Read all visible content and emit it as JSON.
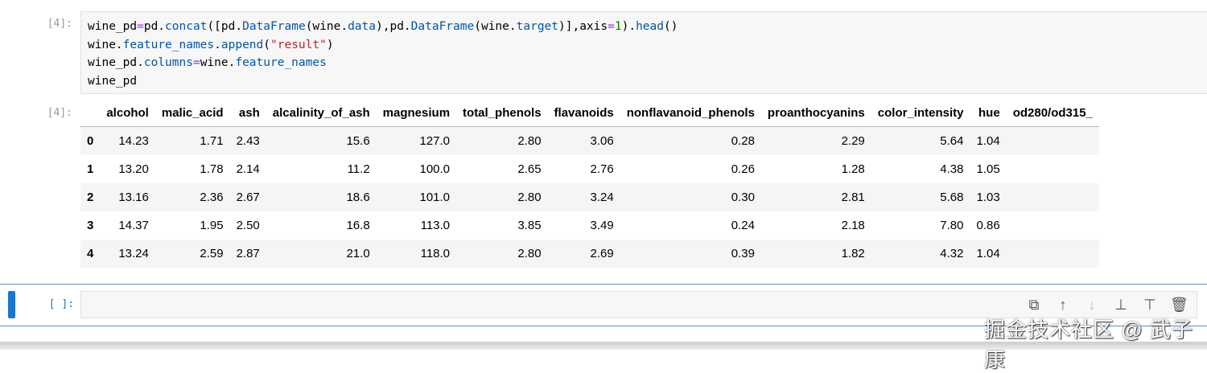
{
  "cell_in": {
    "prompt": "[4]:",
    "code_lines": [
      [
        [
          "wine_pd",
          ""
        ],
        [
          "=",
          "op"
        ],
        [
          "pd.",
          ""
        ],
        [
          "concat",
          "kw"
        ],
        [
          "([",
          ""
        ],
        [
          "pd.",
          ""
        ],
        [
          "DataFrame",
          "kw"
        ],
        [
          "(wine.",
          ""
        ],
        [
          "data",
          "kw"
        ],
        [
          "),pd.",
          ""
        ],
        [
          "DataFrame",
          "kw"
        ],
        [
          "(wine.",
          ""
        ],
        [
          "target",
          "kw"
        ],
        [
          ")],axis",
          ""
        ],
        [
          "=",
          "op"
        ],
        [
          "1",
          "nm"
        ],
        [
          ").",
          ""
        ],
        [
          "head",
          "kw"
        ],
        [
          "()",
          ""
        ]
      ],
      [
        [
          "wine.",
          ""
        ],
        [
          "feature_names",
          "kw"
        ],
        [
          ".",
          ""
        ],
        [
          "append",
          "kw"
        ],
        [
          "(",
          ""
        ],
        [
          "\"result\"",
          "st"
        ],
        [
          ")",
          ""
        ]
      ],
      [
        [
          "wine_pd.",
          ""
        ],
        [
          "columns",
          "kw"
        ],
        [
          "=",
          "op"
        ],
        [
          "wine.",
          ""
        ],
        [
          "feature_names",
          "kw"
        ]
      ],
      [
        [
          "wine_pd",
          ""
        ]
      ]
    ]
  },
  "cell_out": {
    "prompt": "[4]:",
    "columns": [
      "",
      "alcohol",
      "malic_acid",
      "ash",
      "alcalinity_of_ash",
      "magnesium",
      "total_phenols",
      "flavanoids",
      "nonflavanoid_phenols",
      "proanthocyanins",
      "color_intensity",
      "hue",
      "od280/od315_"
    ],
    "rows": [
      [
        "0",
        "14.23",
        "1.71",
        "2.43",
        "15.6",
        "127.0",
        "2.80",
        "3.06",
        "0.28",
        "2.29",
        "5.64",
        "1.04",
        ""
      ],
      [
        "1",
        "13.20",
        "1.78",
        "2.14",
        "11.2",
        "100.0",
        "2.65",
        "2.76",
        "0.26",
        "1.28",
        "4.38",
        "1.05",
        ""
      ],
      [
        "2",
        "13.16",
        "2.36",
        "2.67",
        "18.6",
        "101.0",
        "2.80",
        "3.24",
        "0.30",
        "2.81",
        "5.68",
        "1.03",
        ""
      ],
      [
        "3",
        "14.37",
        "1.95",
        "2.50",
        "16.8",
        "113.0",
        "3.85",
        "3.49",
        "0.24",
        "2.18",
        "7.80",
        "0.86",
        ""
      ],
      [
        "4",
        "13.24",
        "2.59",
        "2.87",
        "21.0",
        "118.0",
        "2.80",
        "2.69",
        "0.39",
        "1.82",
        "4.32",
        "1.04",
        ""
      ]
    ]
  },
  "empty_cell": {
    "prompt": "[ ]:"
  },
  "toolbar": {
    "icons": [
      "duplicate-icon",
      "move-up-icon",
      "move-down-icon",
      "insert-above-icon",
      "insert-below-icon",
      "delete-icon"
    ],
    "glyphs": [
      "⧉",
      "↑",
      "↓",
      "⊥",
      "⊤",
      "🗑"
    ]
  },
  "watermark": "掘金技术社区 @ 武子康",
  "colors": {
    "keyword": "#0055aa",
    "operator": "#aa22ff",
    "string": "#ba2121",
    "number": "#008000",
    "active_bar": "#1976d2"
  }
}
